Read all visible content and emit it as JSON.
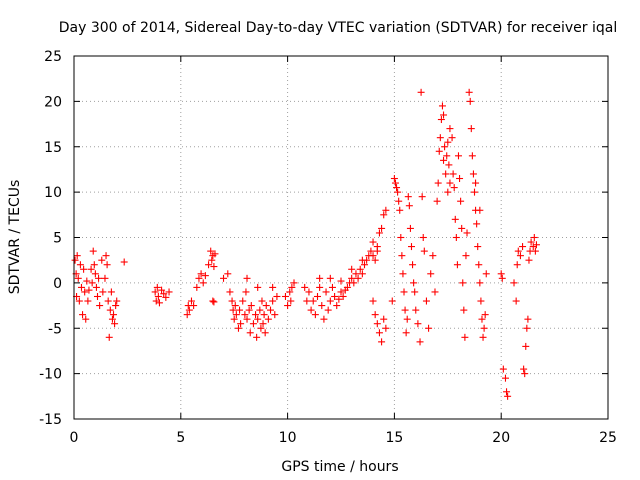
{
  "chart_data": {
    "type": "scatter",
    "title": "Day 300 of 2014, Sidereal Day-to-day VTEC variation (SDTVAR) for receiver iqal",
    "xlabel": "GPS time / hours",
    "ylabel": "SDTVAR / TECUs",
    "xlim": [
      0,
      25
    ],
    "ylim": [
      -15,
      25
    ],
    "xticks": [
      0,
      5,
      10,
      15,
      20,
      25
    ],
    "yticks": [
      -15,
      -10,
      -5,
      0,
      5,
      10,
      15,
      20,
      25
    ],
    "xtick_labels": [
      "0",
      "5",
      "10",
      "15",
      "20",
      "25"
    ],
    "ytick_labels": [
      "-15",
      "-10",
      "-5",
      "0",
      "5",
      "10",
      "15",
      "20",
      "25"
    ],
    "grid": true,
    "marker": "+",
    "color": "#ff0000",
    "series": [
      {
        "name": "SDTVAR",
        "points": [
          [
            0.05,
            2.5
          ],
          [
            0.1,
            1.0
          ],
          [
            0.12,
            -1.5
          ],
          [
            0.15,
            3.0
          ],
          [
            0.2,
            0.5
          ],
          [
            0.25,
            -2.0
          ],
          [
            0.3,
            2.0
          ],
          [
            0.35,
            -0.5
          ],
          [
            0.4,
            -3.5
          ],
          [
            0.45,
            1.5
          ],
          [
            0.5,
            -1.0
          ],
          [
            0.55,
            -4.0
          ],
          [
            0.6,
            0.2
          ],
          [
            0.65,
            -2.0
          ],
          [
            0.7,
            -0.8
          ],
          [
            0.8,
            1.5
          ],
          [
            0.85,
            0.0
          ],
          [
            0.9,
            3.5
          ],
          [
            0.95,
            2.0
          ],
          [
            1.0,
            1.0
          ],
          [
            1.05,
            -0.5
          ],
          [
            1.1,
            -1.5
          ],
          [
            1.15,
            0.5
          ],
          [
            1.2,
            -2.5
          ],
          [
            1.3,
            2.5
          ],
          [
            1.35,
            -1.0
          ],
          [
            1.45,
            0.5
          ],
          [
            1.5,
            3.0
          ],
          [
            1.55,
            2.0
          ],
          [
            1.6,
            -2.0
          ],
          [
            1.65,
            -6.0
          ],
          [
            1.7,
            -3.0
          ],
          [
            1.75,
            -1.0
          ],
          [
            1.8,
            -4.0
          ],
          [
            1.85,
            -3.5
          ],
          [
            1.9,
            -4.5
          ],
          [
            1.95,
            -2.5
          ],
          [
            2.0,
            -2.0
          ],
          [
            2.35,
            2.3
          ],
          [
            3.8,
            -1.0
          ],
          [
            3.85,
            -2.0
          ],
          [
            3.9,
            -0.5
          ],
          [
            3.95,
            -1.5
          ],
          [
            4.0,
            -2.2
          ],
          [
            4.1,
            -0.8
          ],
          [
            4.2,
            -1.2
          ],
          [
            4.3,
            -1.6
          ],
          [
            4.45,
            -1.0
          ],
          [
            5.3,
            -3.5
          ],
          [
            5.35,
            -2.5
          ],
          [
            5.4,
            -3.0
          ],
          [
            5.5,
            -2.0
          ],
          [
            5.6,
            -2.5
          ],
          [
            5.75,
            -0.5
          ],
          [
            5.85,
            0.5
          ],
          [
            5.95,
            1.0
          ],
          [
            6.05,
            0.0
          ],
          [
            6.15,
            0.8
          ],
          [
            6.3,
            2.0
          ],
          [
            6.4,
            3.5
          ],
          [
            6.45,
            2.5
          ],
          [
            6.5,
            3.0
          ],
          [
            6.55,
            1.8
          ],
          [
            6.6,
            3.2
          ],
          [
            6.5,
            -2.0
          ],
          [
            6.55,
            -2.1
          ],
          [
            7.0,
            0.5
          ],
          [
            7.2,
            1.0
          ],
          [
            7.3,
            -1.0
          ],
          [
            7.4,
            -2.0
          ],
          [
            7.45,
            -3.0
          ],
          [
            7.5,
            -4.0
          ],
          [
            7.55,
            -2.5
          ],
          [
            7.6,
            -3.5
          ],
          [
            7.7,
            -5.0
          ],
          [
            7.75,
            -3.0
          ],
          [
            7.8,
            -4.5
          ],
          [
            7.9,
            -2.0
          ],
          [
            8.0,
            -3.5
          ],
          [
            8.05,
            -1.0
          ],
          [
            8.1,
            -4.0
          ],
          [
            8.2,
            -3.0
          ],
          [
            8.25,
            -5.5
          ],
          [
            8.3,
            -2.5
          ],
          [
            8.4,
            -4.5
          ],
          [
            8.5,
            -3.5
          ],
          [
            8.55,
            -6.0
          ],
          [
            8.6,
            -4.0
          ],
          [
            8.7,
            -3.0
          ],
          [
            8.75,
            -5.0
          ],
          [
            8.8,
            -2.0
          ],
          [
            8.85,
            -4.5
          ],
          [
            8.9,
            -3.5
          ],
          [
            8.95,
            -5.5
          ],
          [
            9.0,
            -2.5
          ],
          [
            9.1,
            -4.0
          ],
          [
            9.2,
            -3.0
          ],
          [
            9.3,
            -2.0
          ],
          [
            9.4,
            -3.5
          ],
          [
            9.5,
            -1.5
          ],
          [
            8.1,
            0.5
          ],
          [
            8.6,
            -0.5
          ],
          [
            9.3,
            -0.5
          ],
          [
            9.9,
            -1.5
          ],
          [
            10.0,
            -2.5
          ],
          [
            10.1,
            -1.0
          ],
          [
            10.15,
            -2.0
          ],
          [
            10.2,
            -0.5
          ],
          [
            10.3,
            0.0
          ],
          [
            10.8,
            -0.5
          ],
          [
            10.9,
            -2.0
          ],
          [
            11.0,
            -1.0
          ],
          [
            11.1,
            -3.0
          ],
          [
            11.2,
            -2.0
          ],
          [
            11.3,
            -3.5
          ],
          [
            11.4,
            -1.5
          ],
          [
            11.5,
            -0.5
          ],
          [
            11.6,
            -2.5
          ],
          [
            11.7,
            -4.0
          ],
          [
            11.8,
            -1.0
          ],
          [
            11.9,
            -3.0
          ],
          [
            12.0,
            -2.0
          ],
          [
            12.1,
            -0.5
          ],
          [
            12.2,
            -1.5
          ],
          [
            12.3,
            -2.5
          ],
          [
            12.4,
            -1.8
          ],
          [
            12.5,
            -1.0
          ],
          [
            12.6,
            -1.5
          ],
          [
            12.7,
            -0.8
          ],
          [
            12.8,
            -0.5
          ],
          [
            12.9,
            0.0
          ],
          [
            13.0,
            0.5
          ],
          [
            13.1,
            0.0
          ],
          [
            13.2,
            1.0
          ],
          [
            13.3,
            0.5
          ],
          [
            13.4,
            1.5
          ],
          [
            13.5,
            1.0
          ],
          [
            13.6,
            2.0
          ],
          [
            13.7,
            2.5
          ],
          [
            13.8,
            3.0
          ],
          [
            13.9,
            3.5
          ],
          [
            14.0,
            3.0
          ],
          [
            14.1,
            2.5
          ],
          [
            14.2,
            4.0
          ],
          [
            14.3,
            5.5
          ],
          [
            14.4,
            6.0
          ],
          [
            14.5,
            7.5
          ],
          [
            14.6,
            8.0
          ],
          [
            14.0,
            -2.0
          ],
          [
            14.1,
            -3.5
          ],
          [
            14.2,
            -4.5
          ],
          [
            14.3,
            -5.5
          ],
          [
            14.4,
            -6.5
          ],
          [
            14.5,
            -4.0
          ],
          [
            14.6,
            -5.0
          ],
          [
            11.5,
            0.5
          ],
          [
            12.0,
            0.5
          ],
          [
            12.5,
            0.2
          ],
          [
            13.0,
            1.5
          ],
          [
            13.5,
            2.5
          ],
          [
            14.0,
            4.5
          ],
          [
            14.2,
            3.5
          ],
          [
            14.9,
            -2.0
          ],
          [
            15.0,
            11.5
          ],
          [
            15.05,
            11.0
          ],
          [
            15.1,
            10.5
          ],
          [
            15.15,
            10.0
          ],
          [
            15.2,
            9.0
          ],
          [
            15.25,
            8.0
          ],
          [
            15.3,
            5.0
          ],
          [
            15.35,
            3.0
          ],
          [
            15.4,
            1.0
          ],
          [
            15.45,
            -1.0
          ],
          [
            15.5,
            -3.0
          ],
          [
            15.55,
            -5.5
          ],
          [
            15.6,
            -4.0
          ],
          [
            15.65,
            9.5
          ],
          [
            15.7,
            8.5
          ],
          [
            15.75,
            6.0
          ],
          [
            15.8,
            4.0
          ],
          [
            15.85,
            2.0
          ],
          [
            15.9,
            0.0
          ],
          [
            15.95,
            -1.0
          ],
          [
            16.0,
            -3.0
          ],
          [
            16.1,
            -4.5
          ],
          [
            16.2,
            -6.5
          ],
          [
            16.25,
            21.0
          ],
          [
            16.3,
            9.5
          ],
          [
            16.35,
            5.0
          ],
          [
            16.4,
            3.5
          ],
          [
            16.5,
            -2.0
          ],
          [
            16.6,
            -5.0
          ],
          [
            16.7,
            1.0
          ],
          [
            16.8,
            3.0
          ],
          [
            16.9,
            -1.0
          ],
          [
            17.0,
            9.0
          ],
          [
            17.05,
            11.0
          ],
          [
            17.1,
            14.5
          ],
          [
            17.15,
            16.0
          ],
          [
            17.2,
            18.0
          ],
          [
            17.25,
            19.5
          ],
          [
            17.3,
            18.5
          ],
          [
            17.35,
            15.0
          ],
          [
            17.4,
            12.0
          ],
          [
            17.45,
            14.0
          ],
          [
            17.5,
            15.5
          ],
          [
            17.55,
            13.0
          ],
          [
            17.6,
            11.0
          ],
          [
            17.7,
            16.0
          ],
          [
            17.75,
            12.0
          ],
          [
            17.8,
            10.5
          ],
          [
            17.85,
            7.0
          ],
          [
            17.9,
            5.0
          ],
          [
            17.95,
            2.0
          ],
          [
            18.0,
            14.0
          ],
          [
            18.05,
            11.5
          ],
          [
            18.1,
            9.0
          ],
          [
            18.15,
            6.0
          ],
          [
            18.2,
            0.0
          ],
          [
            18.25,
            -3.0
          ],
          [
            18.3,
            -6.0
          ],
          [
            18.35,
            3.0
          ],
          [
            18.4,
            5.5
          ],
          [
            18.5,
            21.0
          ],
          [
            18.55,
            20.0
          ],
          [
            18.6,
            17.0
          ],
          [
            18.65,
            14.0
          ],
          [
            18.7,
            12.0
          ],
          [
            18.75,
            10.0
          ],
          [
            18.8,
            8.0
          ],
          [
            18.85,
            6.5
          ],
          [
            18.9,
            4.0
          ],
          [
            18.95,
            2.0
          ],
          [
            19.0,
            0.0
          ],
          [
            19.05,
            -2.0
          ],
          [
            19.1,
            -4.0
          ],
          [
            19.15,
            -6.0
          ],
          [
            19.2,
            -5.0
          ],
          [
            19.25,
            -3.5
          ],
          [
            19.3,
            1.0
          ],
          [
            17.6,
            17.0
          ],
          [
            18.8,
            11.0
          ],
          [
            19.0,
            8.0
          ],
          [
            17.3,
            13.5
          ],
          [
            17.5,
            10.0
          ],
          [
            20.0,
            1.0
          ],
          [
            20.05,
            0.5
          ],
          [
            20.1,
            -9.5
          ],
          [
            20.2,
            -10.5
          ],
          [
            20.25,
            -12.0
          ],
          [
            20.3,
            -12.5
          ],
          [
            20.6,
            0.0
          ],
          [
            20.7,
            -2.0
          ],
          [
            20.75,
            2.0
          ],
          [
            20.8,
            3.5
          ],
          [
            20.9,
            3.0
          ],
          [
            21.0,
            4.0
          ],
          [
            21.05,
            -9.5
          ],
          [
            21.1,
            -10.0
          ],
          [
            21.15,
            -7.0
          ],
          [
            21.2,
            -5.0
          ],
          [
            21.25,
            -4.0
          ],
          [
            21.3,
            2.5
          ],
          [
            21.35,
            3.5
          ],
          [
            21.4,
            4.5
          ],
          [
            21.5,
            4.0
          ],
          [
            21.55,
            5.0
          ],
          [
            21.6,
            3.5
          ],
          [
            21.65,
            4.2
          ]
        ]
      }
    ]
  }
}
